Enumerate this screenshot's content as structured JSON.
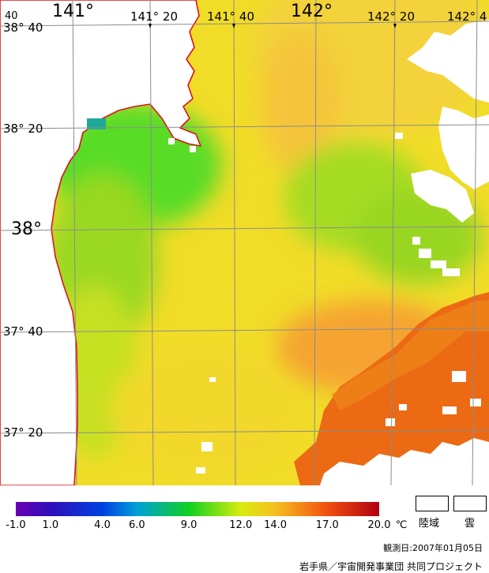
{
  "map": {
    "lon_labels": [
      {
        "text": "141°",
        "size": "big"
      },
      {
        "text": "141° 20",
        "size": "mid"
      },
      {
        "text": "141° 40",
        "size": "mid"
      },
      {
        "text": "142°",
        "size": "big"
      },
      {
        "text": "142° 20",
        "size": "mid"
      },
      {
        "text": "142° 4",
        "size": "mid"
      }
    ],
    "corner_label": "40",
    "lat_labels": [
      {
        "text": "38° 40",
        "size": "mid"
      },
      {
        "text": "38° 20",
        "size": "mid"
      },
      {
        "text": "38°",
        "size": "big"
      },
      {
        "text": "37° 40",
        "size": "mid"
      },
      {
        "text": "37° 20",
        "size": "mid"
      }
    ],
    "colors": {
      "coastline": "#e0101a",
      "grid": "#8c8c8c",
      "land_cloud": "#ffffff"
    }
  },
  "colorbar": {
    "min": -1.0,
    "max": 20.0,
    "stops": [
      {
        "value": -1.0,
        "color": "#6a00b5"
      },
      {
        "value": 1.0,
        "color": "#2e0fb8"
      },
      {
        "value": 4.0,
        "color": "#0040e0"
      },
      {
        "value": 6.0,
        "color": "#00a0d8"
      },
      {
        "value": 9.0,
        "color": "#10d020"
      },
      {
        "value": 12.0,
        "color": "#d8ec10"
      },
      {
        "value": 14.0,
        "color": "#f5c020"
      },
      {
        "value": 17.0,
        "color": "#f05010"
      },
      {
        "value": 20.0,
        "color": "#b00010"
      }
    ],
    "tick_labels": [
      "-1.0",
      "1.0",
      "4.0",
      "6.0",
      "9.0",
      "12.0",
      "14.0",
      "17.0",
      "20.0"
    ],
    "unit": "℃"
  },
  "legend": {
    "land_label": "陸域",
    "cloud_label": "雲"
  },
  "footer": {
    "date_text": "観測日:2007年01月05日",
    "credit_text": "岩手県／宇宙開発事業団 共同プロジェクト"
  }
}
